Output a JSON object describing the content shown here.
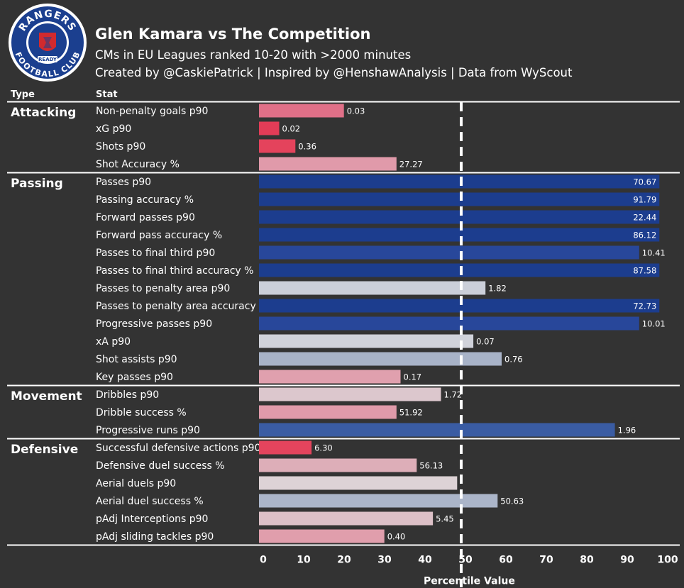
{
  "header": {
    "title": "Glen Kamara vs The Competition",
    "subtitle": "CMs in EU Leagues ranked 10-20 with >2000 minutes",
    "credit": "Created by @CaskiePatrick | Inspired by @HenshawAnalysis | Data from WyScout"
  },
  "logo": {
    "top_text": "RANGERS",
    "bottom_text": "FOOTBALL CLUB",
    "motto": "READY",
    "colors": {
      "blue": "#1b3f8f",
      "red": "#d12a2e",
      "white": "#ffffff"
    }
  },
  "column_headers": {
    "type": "Type",
    "stat": "Stat"
  },
  "chart_data": {
    "type": "bar",
    "orientation": "horizontal",
    "xlabel": "Percentile Value",
    "xlim": [
      0,
      100
    ],
    "xticks": [
      0,
      10,
      20,
      30,
      40,
      50,
      60,
      70,
      80,
      90,
      100
    ],
    "reference_line": 50,
    "grid": false,
    "groups": [
      {
        "name": "Attacking",
        "stats": [
          {
            "label": "Non-penalty goals p90",
            "percentile": 21,
            "value": "0.03",
            "color": "#e07088"
          },
          {
            "label": "xG p90",
            "percentile": 5,
            "value": "0.02",
            "color": "#e23c57"
          },
          {
            "label": "Shots p90",
            "percentile": 9,
            "value": "0.36",
            "color": "#e4435c"
          },
          {
            "label": "Shot Accuracy %",
            "percentile": 34,
            "value": "27.27",
            "color": "#e09aaa"
          }
        ]
      },
      {
        "name": "Passing",
        "stats": [
          {
            "label": "Passes p90",
            "percentile": 99,
            "value": "70.67",
            "color": "#1c3d8e"
          },
          {
            "label": "Passing accuracy %",
            "percentile": 99,
            "value": "91.79",
            "color": "#1c3d8e"
          },
          {
            "label": "Forward passes p90",
            "percentile": 99,
            "value": "22.44",
            "color": "#1c3d8e"
          },
          {
            "label": "Forward pass accuracy %",
            "percentile": 99,
            "value": "86.12",
            "color": "#1c3d8e"
          },
          {
            "label": "Passes to final third p90",
            "percentile": 94,
            "value": "10.41",
            "color": "#28479a"
          },
          {
            "label": "Passes to final third accuracy %",
            "percentile": 99,
            "value": "87.58",
            "color": "#1c3d8e"
          },
          {
            "label": "Passes to penalty area p90",
            "percentile": 56,
            "value": "1.82",
            "color": "#cbcfd9"
          },
          {
            "label": "Passes to penalty area accuracy %",
            "percentile": 99,
            "value": "72.73",
            "color": "#1c3d8e"
          },
          {
            "label": "Progressive passes p90",
            "percentile": 94,
            "value": "10.01",
            "color": "#28479a"
          },
          {
            "label": "xA p90",
            "percentile": 53,
            "value": "0.07",
            "color": "#d0d2da"
          },
          {
            "label": "Shot assists p90",
            "percentile": 60,
            "value": "0.76",
            "color": "#a8b3c8"
          },
          {
            "label": "Key passes p90",
            "percentile": 35,
            "value": "0.17",
            "color": "#e0a0ae"
          }
        ]
      },
      {
        "name": "Movement",
        "stats": [
          {
            "label": "Dribbles p90",
            "percentile": 45,
            "value": "1.72",
            "color": "#dcc7cd"
          },
          {
            "label": "Dribble success %",
            "percentile": 34,
            "value": "51.92",
            "color": "#e09aaa"
          },
          {
            "label": "Progressive runs p90",
            "percentile": 88,
            "value": "1.96",
            "color": "#3a5ca3"
          }
        ]
      },
      {
        "name": "Defensive",
        "stats": [
          {
            "label": "Successful defensive actions p90",
            "percentile": 13,
            "value": "6.30",
            "color": "#e4445d"
          },
          {
            "label": "Defensive duel success %",
            "percentile": 39,
            "value": "56.13",
            "color": "#ddaeb8"
          },
          {
            "label": "Aerial duels p90",
            "percentile": 49,
            "value": "",
            "color": "#ddd3d6"
          },
          {
            "label": "Aerial duel success %",
            "percentile": 59,
            "value": "50.63",
            "color": "#abb5c9"
          },
          {
            "label": "pAdj Interceptions p90",
            "percentile": 43,
            "value": "5.45",
            "color": "#dcc0c7"
          },
          {
            "label": "pAdj sliding tackles p90",
            "percentile": 31,
            "value": "0.40",
            "color": "#e09eac"
          }
        ]
      }
    ]
  }
}
